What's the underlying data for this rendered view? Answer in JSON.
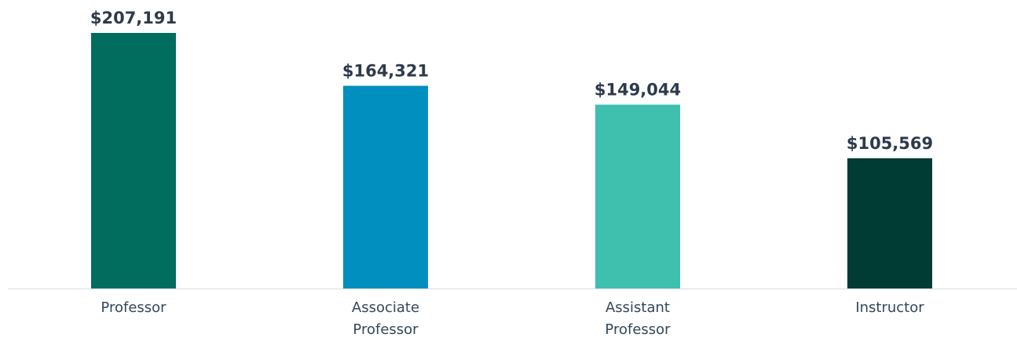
{
  "chart_data": {
    "type": "bar",
    "categories": [
      "Professor",
      "Associate Professor",
      "Assistant Professor",
      "Instructor"
    ],
    "values": [
      207191,
      164321,
      149044,
      105569
    ],
    "value_labels": [
      "$207,191",
      "$164,321",
      "$149,044",
      "$105,569"
    ],
    "colors": [
      "#006d5f",
      "#008fbf",
      "#3fbfae",
      "#003b34"
    ]
  }
}
